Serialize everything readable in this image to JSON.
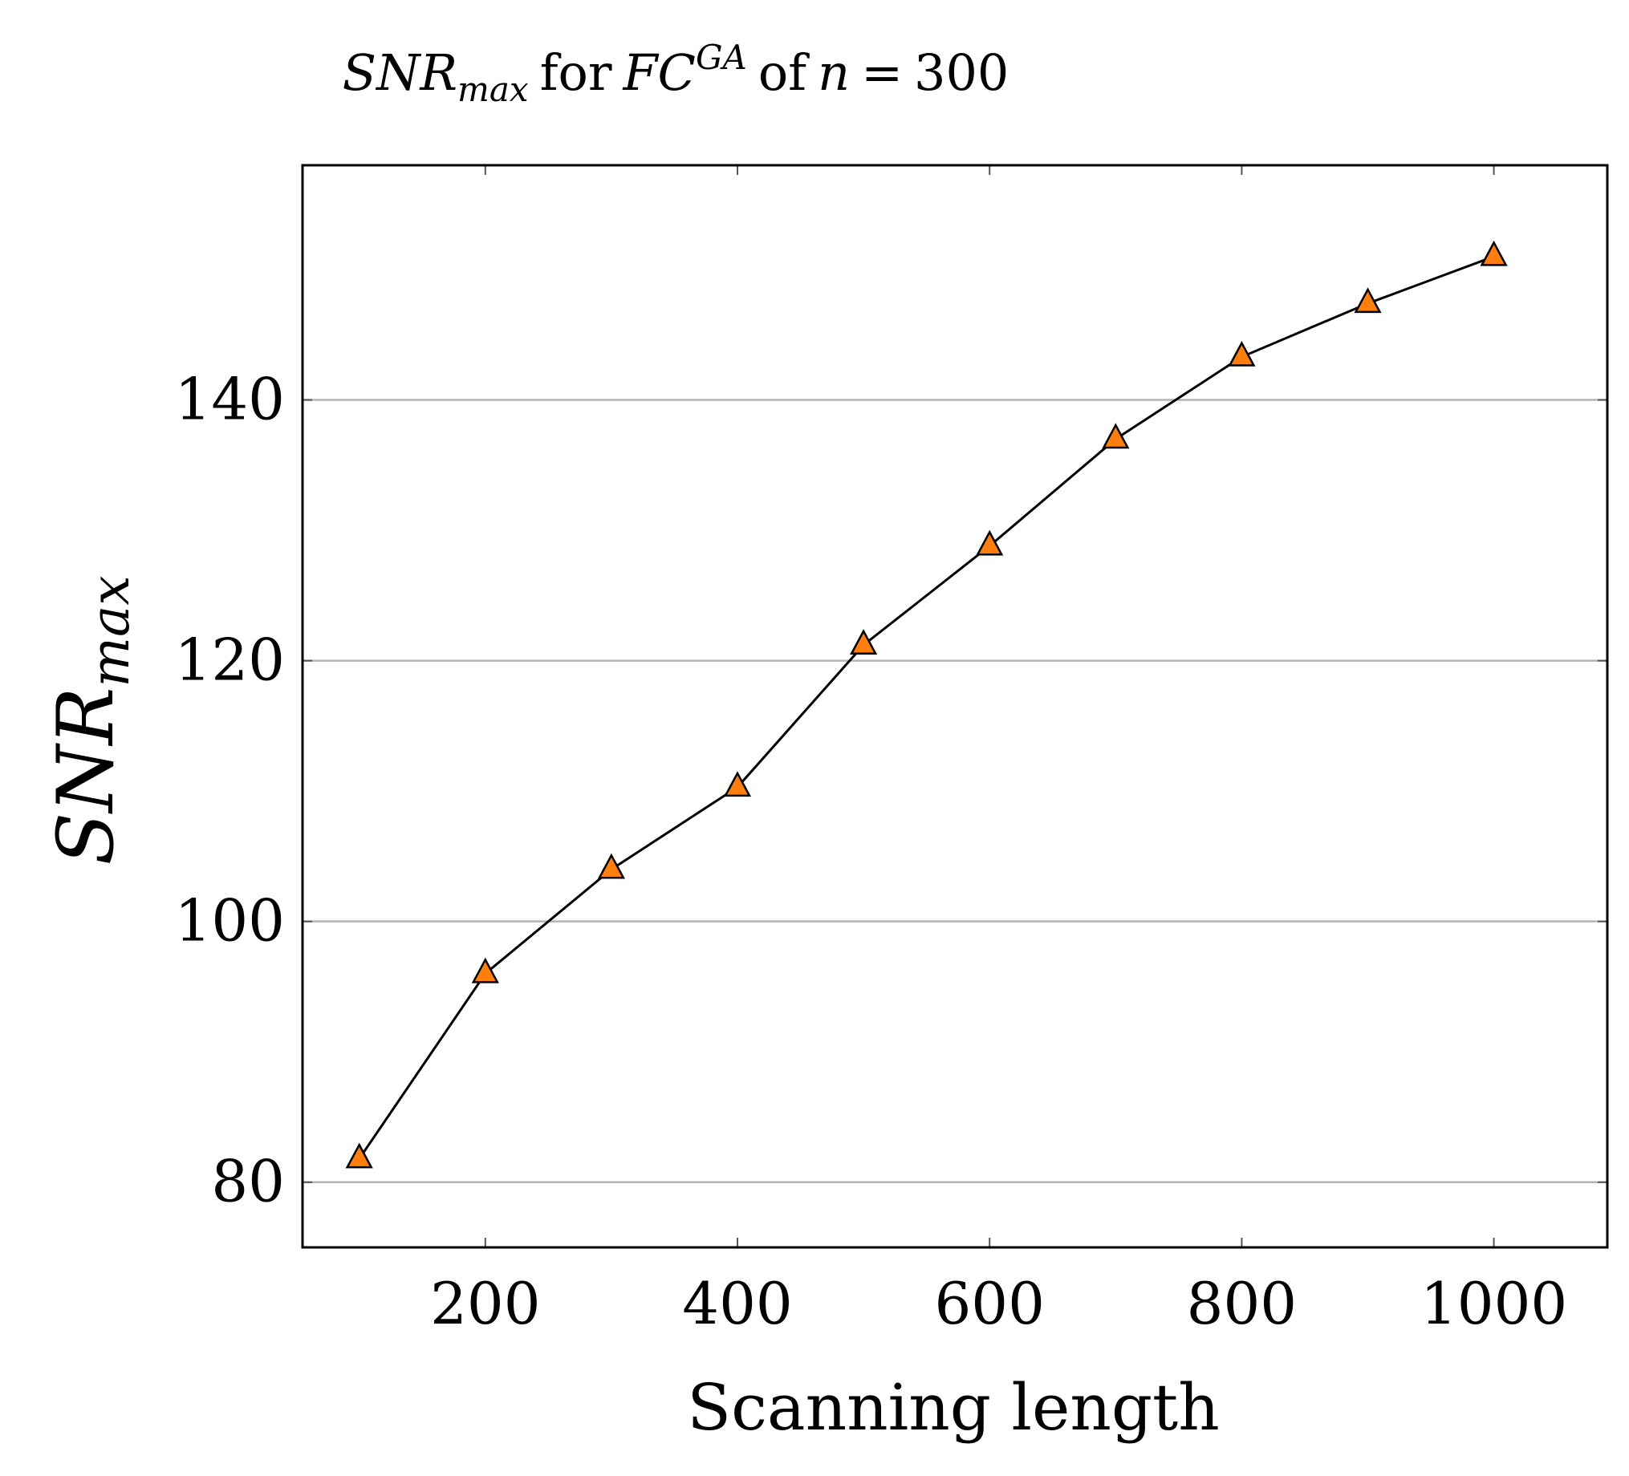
{
  "chart_data": {
    "type": "line",
    "title": {
      "prefix": "SNR",
      "prefix_sub": "max",
      "for_word": "for",
      "method": "FC",
      "method_sup": "GA",
      "of_word": "of",
      "n_symbol": "n",
      "equals": "=",
      "n_value": "300"
    },
    "xlabel": "Scanning length",
    "ylabel": {
      "main": "SNR",
      "sub": "max"
    },
    "xlim": [
      55,
      1090
    ],
    "ylim": [
      75,
      158
    ],
    "xticks": [
      {
        "value": 200,
        "label": "200"
      },
      {
        "value": 400,
        "label": "400"
      },
      {
        "value": 600,
        "label": "600"
      },
      {
        "value": 800,
        "label": "800"
      },
      {
        "value": 1000,
        "label": "1000"
      }
    ],
    "yticks": [
      {
        "value": 80,
        "label": "80"
      },
      {
        "value": 100,
        "label": "100"
      },
      {
        "value": 120,
        "label": "120"
      },
      {
        "value": 140,
        "label": "140"
      }
    ],
    "grid": "y-major",
    "series": [
      {
        "name": "SNR_max",
        "marker": "triangle",
        "color": "#ff7f0e",
        "line_color": "#000000",
        "x": [
          100,
          200,
          300,
          400,
          500,
          600,
          700,
          800,
          900,
          1000
        ],
        "y": [
          81.8,
          96,
          104,
          110.3,
          121.2,
          128.8,
          137,
          143.3,
          147.4,
          151
        ]
      }
    ]
  }
}
